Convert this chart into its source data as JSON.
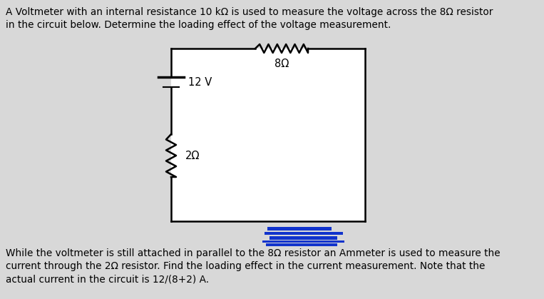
{
  "bg_color": "#d8d8d8",
  "page_color": "#d8d8d8",
  "circuit_bg": "#ffffff",
  "text_color": "#000000",
  "line_color": "#000000",
  "title_line1": "A Voltmeter with an internal resistance 10 kΩ is used to measure the voltage across the 8Ω resistor",
  "title_line2": "in the circuit below. Determine the loading effect of the voltage measurement.",
  "bottom_line1": "While the voltmeter is still attached in parallel to the 8Ω resistor an Ammeter is used to measure the",
  "bottom_line2": "current through the 2Ω resistor. Find the loading effect in the current measurement. Note that the",
  "bottom_line3": "actual current in the circuit is 12/(8+2) A.",
  "resistor8_label": "8Ω",
  "resistor2_label": "2Ω",
  "battery_label": "12 V",
  "font_size_body": 9.8,
  "font_size_labels": 10.5,
  "wire_color": "#000000",
  "lw": 1.8,
  "blue_bar_color": "#1133cc"
}
